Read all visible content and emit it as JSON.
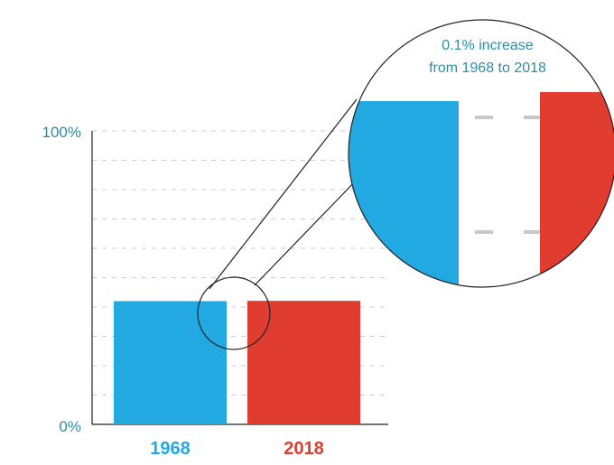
{
  "chart_data": {
    "type": "bar",
    "categories": [
      "1968",
      "2018"
    ],
    "series": [
      {
        "values": [
          42.0,
          42.1
        ]
      }
    ],
    "bar_colors": [
      "#22a9e1",
      "#e13c30"
    ],
    "ylim": [
      0,
      100
    ],
    "y_tick_labels": [
      "0%",
      "100%"
    ],
    "grid": true,
    "annotation": {
      "line1": "0.1% increase",
      "line2": "from 1968 to 2018"
    }
  },
  "colors": {
    "axis_text": "#2a8ea5",
    "category_1968": "#22a9e1",
    "category_2018": "#e13c30",
    "grid": "#c8c8c8",
    "axis": "#222222"
  }
}
